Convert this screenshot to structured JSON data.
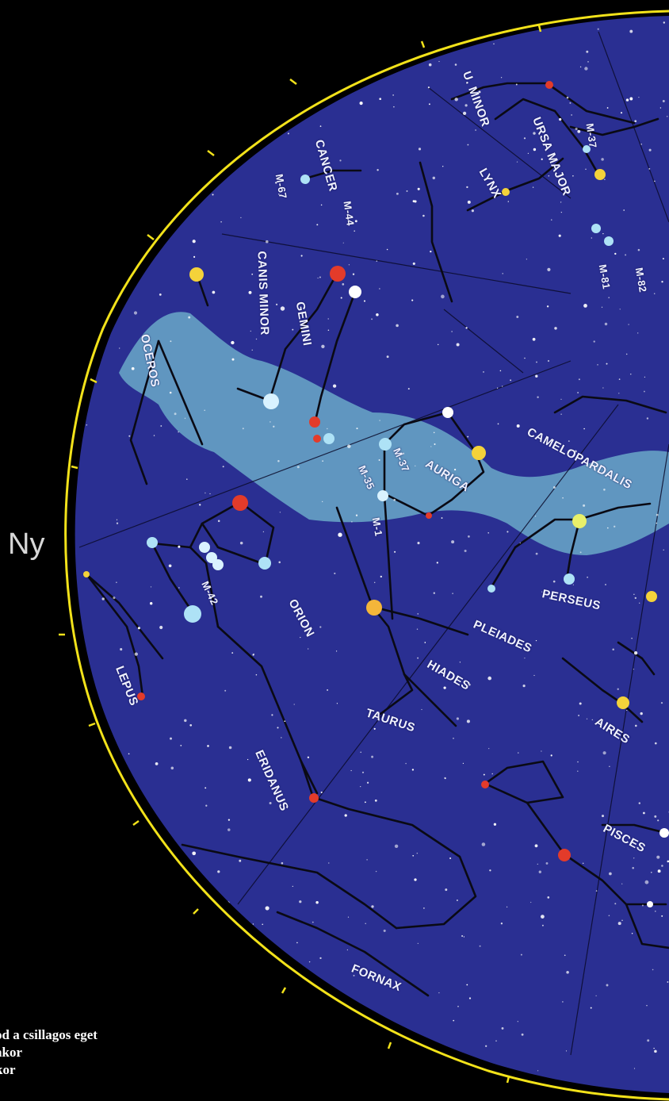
{
  "map": {
    "cardinal_west": "Ny",
    "constellations": [
      {
        "key": "ursa-minor",
        "label": "U. MINOR"
      },
      {
        "key": "ursa-major",
        "label": "URSA MAJOR"
      },
      {
        "key": "lynx",
        "label": "LYNX"
      },
      {
        "key": "cancer",
        "label": "CANCER"
      },
      {
        "key": "canis-minor",
        "label": "CANIS MINOR"
      },
      {
        "key": "gemini",
        "label": "GEMINI"
      },
      {
        "key": "monoceros",
        "label": "OCEROS"
      },
      {
        "key": "auriga",
        "label": "AURIGA"
      },
      {
        "key": "camelopardalis",
        "label": "CAMELOPARDALIS"
      },
      {
        "key": "perseus",
        "label": "PERSEUS"
      },
      {
        "key": "orion",
        "label": "ORION"
      },
      {
        "key": "pleiades",
        "label": "PLEIADES"
      },
      {
        "key": "hiades",
        "label": "HIADES"
      },
      {
        "key": "taurus",
        "label": "TAURUS"
      },
      {
        "key": "aires",
        "label": "AIRES"
      },
      {
        "key": "lepus",
        "label": "LEPUS"
      },
      {
        "key": "eridanus",
        "label": "ERIDANUS"
      },
      {
        "key": "pisces",
        "label": "PISCES"
      },
      {
        "key": "fornax",
        "label": "FORNAX"
      }
    ],
    "messier": [
      {
        "key": "m37-top",
        "label": "M-37"
      },
      {
        "key": "m67",
        "label": "M-67"
      },
      {
        "key": "m44",
        "label": "M-44"
      },
      {
        "key": "m81",
        "label": "M-81"
      },
      {
        "key": "m82",
        "label": "M-82"
      },
      {
        "key": "m37",
        "label": "M-37"
      },
      {
        "key": "m35",
        "label": "M-35"
      },
      {
        "key": "m1",
        "label": "M-1"
      },
      {
        "key": "m42",
        "label": "M-42"
      }
    ],
    "colors": {
      "background": "#000000",
      "sky": "#2a2f92",
      "milky_way": "#6aa8c8",
      "horizon": "#f2e21a",
      "constellation_line": "#0a0a14",
      "star_white": "#ffffff",
      "star_blue": "#aee2f6",
      "star_yellow": "#f4d23a",
      "star_red": "#e33b2a"
    }
  },
  "caption": {
    "lines": [
      "od a csillagos eget",
      "akor",
      "kor"
    ]
  }
}
